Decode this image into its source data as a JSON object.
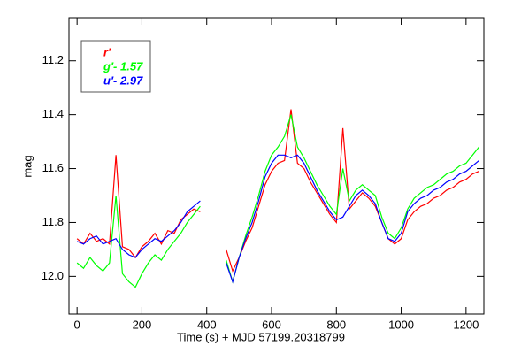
{
  "chart_data": {
    "type": "line",
    "xlabel": "Time (s) + MJD 57199.20318799",
    "ylabel": "mag",
    "x": [
      0,
      20,
      40,
      60,
      80,
      100,
      120,
      140,
      160,
      180,
      200,
      220,
      240,
      260,
      280,
      300,
      320,
      340,
      360,
      380,
      400,
      420,
      440,
      460,
      480,
      500,
      520,
      540,
      560,
      580,
      600,
      620,
      640,
      660,
      680,
      700,
      720,
      740,
      760,
      780,
      800,
      820,
      840,
      860,
      880,
      900,
      920,
      940,
      960,
      980,
      1000,
      1020,
      1040,
      1060,
      1080,
      1100,
      1120,
      1140,
      1160,
      1180,
      1200,
      1220,
      1240
    ],
    "series": [
      {
        "name": "r′",
        "color": "#ff0000",
        "values": [
          11.86,
          11.88,
          11.84,
          11.87,
          11.86,
          11.88,
          11.55,
          11.89,
          11.9,
          11.93,
          11.89,
          11.87,
          11.84,
          11.88,
          11.83,
          11.84,
          11.79,
          11.77,
          11.75,
          11.76,
          null,
          null,
          null,
          11.9,
          11.98,
          11.93,
          11.87,
          11.82,
          11.74,
          11.66,
          11.61,
          11.58,
          11.57,
          11.38,
          11.58,
          11.6,
          11.65,
          11.69,
          11.73,
          11.77,
          11.8,
          11.45,
          11.75,
          11.72,
          11.69,
          11.71,
          11.74,
          11.8,
          11.86,
          11.88,
          11.86,
          11.79,
          11.76,
          11.74,
          11.73,
          11.71,
          11.7,
          11.68,
          11.67,
          11.65,
          11.64,
          11.62,
          11.61
        ]
      },
      {
        "name": "g′- 1.57",
        "color": "#00ff00",
        "values": [
          11.95,
          11.97,
          11.93,
          11.96,
          11.98,
          11.95,
          11.7,
          11.99,
          12.02,
          12.04,
          11.99,
          11.95,
          11.92,
          11.94,
          11.9,
          11.87,
          11.84,
          11.8,
          11.77,
          11.74,
          null,
          null,
          null,
          11.94,
          12.02,
          11.93,
          11.85,
          11.78,
          11.7,
          11.61,
          11.55,
          11.52,
          11.48,
          11.4,
          11.52,
          11.56,
          11.61,
          11.66,
          11.7,
          11.74,
          11.77,
          11.6,
          11.72,
          11.68,
          11.66,
          11.68,
          11.7,
          11.78,
          11.84,
          11.86,
          11.82,
          11.75,
          11.71,
          11.69,
          11.67,
          11.66,
          11.64,
          11.62,
          11.61,
          11.59,
          11.58,
          11.55,
          11.52
        ]
      },
      {
        "name": "u′- 2.97",
        "color": "#0000ff",
        "values": [
          11.87,
          11.88,
          11.86,
          11.85,
          11.88,
          11.87,
          11.86,
          11.9,
          11.92,
          11.93,
          11.9,
          11.88,
          11.86,
          11.87,
          11.85,
          11.83,
          11.8,
          11.76,
          11.74,
          11.72,
          null,
          null,
          null,
          11.95,
          12.02,
          11.93,
          11.86,
          11.8,
          11.72,
          11.63,
          11.58,
          11.55,
          11.55,
          11.56,
          11.55,
          11.58,
          11.63,
          11.68,
          11.72,
          11.76,
          11.79,
          11.78,
          11.74,
          11.7,
          11.68,
          11.7,
          11.73,
          11.8,
          11.86,
          11.87,
          11.84,
          11.76,
          11.73,
          11.71,
          11.7,
          11.68,
          11.67,
          11.65,
          11.64,
          11.62,
          11.61,
          11.59,
          11.57
        ]
      }
    ],
    "xlim": [
      -25,
      1255
    ],
    "xticks": [
      0,
      200,
      400,
      600,
      800,
      1000,
      1200
    ],
    "ylim": [
      12.14,
      11.04
    ],
    "yticks": [
      11.2,
      11.4,
      11.6,
      11.8,
      {
        "value": 12,
        "label": "12.0"
      }
    ]
  }
}
